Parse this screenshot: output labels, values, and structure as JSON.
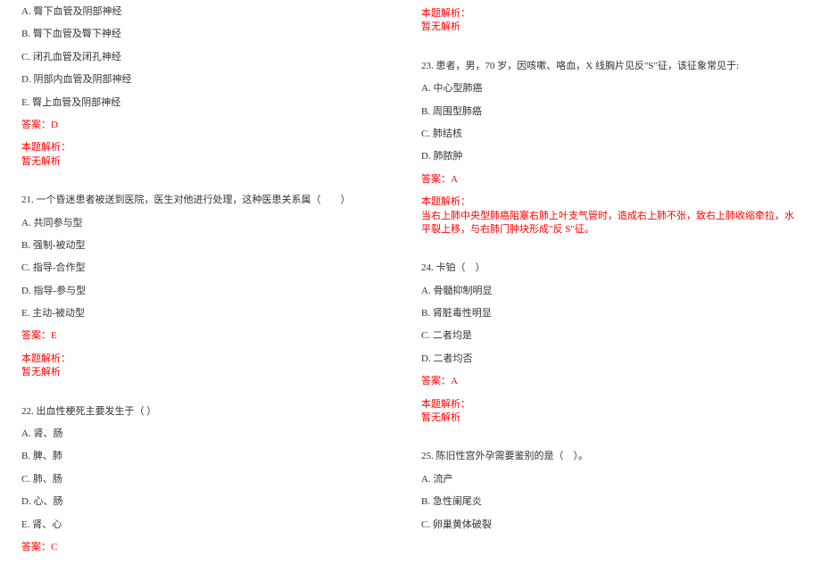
{
  "colors": {
    "text": "#333333",
    "red": "#ff0000",
    "background": "#ffffff"
  },
  "font": {
    "family": "SimSun",
    "size_pt": 11
  },
  "left": {
    "q20_options": {
      "a": "A. 臀下血管及阴部神经",
      "b": "B. 臀下血管及臀下神经",
      "c": "C. 闭孔血管及闭孔神经",
      "d": "D. 阴部内血管及阴部神经",
      "e": "E. 臀上血管及阴部神经"
    },
    "q20_answer": "答案：D",
    "q20_analysis_label": "本题解析：",
    "q20_analysis_text": "暂无解析",
    "q21_stem": "21. 一个昏迷患者被送到医院，医生对他进行处理，这种医患关系属（　　）",
    "q21_options": {
      "a": "A. 共同参与型",
      "b": "B. 强制-被动型",
      "c": "C. 指导-合作型",
      "d": "D. 指导-参与型",
      "e": "E. 主动-被动型"
    },
    "q21_answer": "答案：E",
    "q21_analysis_label": "本题解析：",
    "q21_analysis_text": "暂无解析",
    "q22_stem": "22. 出血性梗死主要发生于（ ）",
    "q22_options": {
      "a": "A. 肾、肠",
      "b": "B. 脾、肺",
      "c": "C. 肺、肠",
      "d": "D. 心、肠",
      "e": "E. 肾、心"
    },
    "q22_answer": "答案：C"
  },
  "right": {
    "prev_analysis_label": "本题解析：",
    "prev_analysis_text": "暂无解析",
    "q23_stem": "23. 患者，男，70 岁，因咳嗽、咯血，X 线胸片见反\"S\"征，该征象常见于:",
    "q23_options": {
      "a": "A. 中心型肺癌",
      "b": "B. 周围型肺癌",
      "c": "C. 肺结核",
      "d": "D. 肺脓肿"
    },
    "q23_answer": "答案：A",
    "q23_analysis_label": "本题解析：",
    "q23_analysis_text": "当右上肺中央型肺癌阻塞右肺上叶支气管时，造成右上肺不张，致右上肺收缩牵拉，水平裂上移，与右肺门肿块形成\"反 S\"征。",
    "q24_stem": "24. 卡铂（　）",
    "q24_options": {
      "a": "A. 骨髓抑制明显",
      "b": "B. 肾脏毒性明显",
      "c": "C. 二者均是",
      "d": "D. 二者均否"
    },
    "q24_answer": "答案：A",
    "q24_analysis_label": "本题解析：",
    "q24_analysis_text": "暂无解析",
    "q25_stem": "25. 陈旧性宫外孕需要鉴别的是（　）。",
    "q25_options": {
      "a": "A. 流产",
      "b": "B. 急性阑尾炎",
      "c": "C. 卵巢黄体破裂"
    }
  }
}
